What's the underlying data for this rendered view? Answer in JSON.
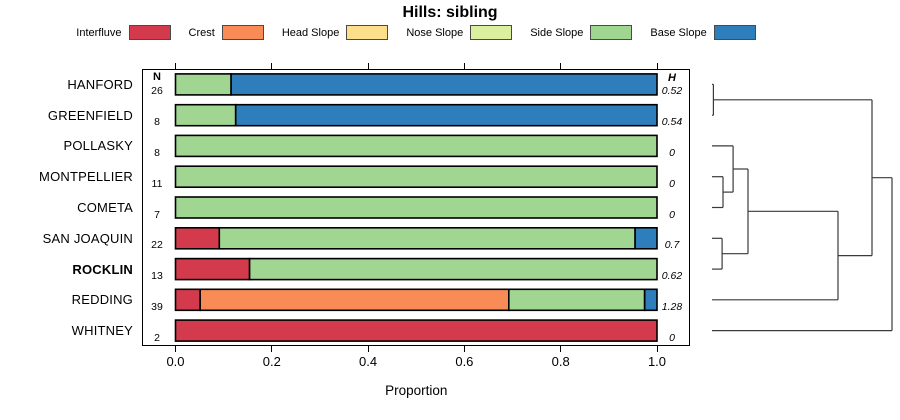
{
  "title": "Hills: sibling",
  "colors": {
    "interfluve": "#D33B4D",
    "crest": "#F98B57",
    "head_slope": "#FBDF8B",
    "nose_slope": "#DCEF9E",
    "side_slope": "#A0D592",
    "base_slope": "#2E7EBC",
    "bar_border": "#000000",
    "dendro_line": "#3a3a3a"
  },
  "legend": {
    "items": [
      {
        "label": "Interfluve",
        "key": "interfluve"
      },
      {
        "label": "Crest",
        "key": "crest"
      },
      {
        "label": "Head Slope",
        "key": "head_slope"
      },
      {
        "label": "Nose Slope",
        "key": "nose_slope"
      },
      {
        "label": "Side Slope",
        "key": "side_slope"
      },
      {
        "label": "Base Slope",
        "key": "base_slope"
      }
    ]
  },
  "columns": {
    "n_header": "N",
    "h_header": "H"
  },
  "axis": {
    "xlabel": "Proportion",
    "ticks": [
      "0.0",
      "0.2",
      "0.4",
      "0.6",
      "0.8",
      "1.0"
    ],
    "tick_values": [
      0,
      0.2,
      0.4,
      0.6,
      0.8,
      1.0
    ]
  },
  "rows": [
    {
      "name": "HANFORD",
      "n": "26",
      "h": "0.52",
      "bold": false,
      "segments": [
        {
          "key": "side_slope",
          "frac": 0.1154
        },
        {
          "key": "base_slope",
          "frac": 0.8846
        }
      ]
    },
    {
      "name": "GREENFIELD",
      "n": "8",
      "h": "0.54",
      "bold": false,
      "segments": [
        {
          "key": "side_slope",
          "frac": 0.125
        },
        {
          "key": "base_slope",
          "frac": 0.875
        }
      ]
    },
    {
      "name": "POLLASKY",
      "n": "8",
      "h": "0",
      "bold": false,
      "segments": [
        {
          "key": "side_slope",
          "frac": 1
        }
      ]
    },
    {
      "name": "MONTPELLIER",
      "n": "11",
      "h": "0",
      "bold": false,
      "segments": [
        {
          "key": "side_slope",
          "frac": 1
        }
      ]
    },
    {
      "name": "COMETA",
      "n": "7",
      "h": "0",
      "bold": false,
      "segments": [
        {
          "key": "side_slope",
          "frac": 1
        }
      ]
    },
    {
      "name": "SAN JOAQUIN",
      "n": "22",
      "h": "0.7",
      "bold": false,
      "segments": [
        {
          "key": "interfluve",
          "frac": 0.0909
        },
        {
          "key": "side_slope",
          "frac": 0.8636
        },
        {
          "key": "base_slope",
          "frac": 0.0455
        }
      ]
    },
    {
      "name": "ROCKLIN",
      "n": "13",
      "h": "0.62",
      "bold": true,
      "segments": [
        {
          "key": "interfluve",
          "frac": 0.1538
        },
        {
          "key": "side_slope",
          "frac": 0.8462
        }
      ]
    },
    {
      "name": "REDDING",
      "n": "39",
      "h": "1.28",
      "bold": false,
      "segments": [
        {
          "key": "interfluve",
          "frac": 0.0513
        },
        {
          "key": "crest",
          "frac": 0.641
        },
        {
          "key": "side_slope",
          "frac": 0.2821
        },
        {
          "key": "base_slope",
          "frac": 0.0256
        }
      ]
    },
    {
      "name": "WHITNEY",
      "n": "2",
      "h": "0",
      "bold": false,
      "segments": [
        {
          "key": "interfluve",
          "frac": 1
        }
      ]
    }
  ],
  "dendrogram": {
    "h": 1.0,
    "children": [
      {
        "h": 0.889,
        "children": [
          {
            "h": 0.008,
            "children": [
              {
                "leaf": 0
              },
              {
                "leaf": 1
              }
            ]
          },
          {
            "h": 0.7,
            "children": [
              {
                "h": 0.2,
                "children": [
                  {
                    "h": 0.117,
                    "children": [
                      {
                        "leaf": 2
                      },
                      {
                        "h": 0.061,
                        "children": [
                          {
                            "leaf": 3
                          },
                          {
                            "leaf": 4
                          }
                        ]
                      }
                    ]
                  },
                  {
                    "h": 0.056,
                    "children": [
                      {
                        "leaf": 5
                      },
                      {
                        "leaf": 6
                      }
                    ]
                  }
                ]
              },
              {
                "leaf": 7
              }
            ]
          }
        ]
      },
      {
        "leaf": 8
      }
    ]
  },
  "chart_data": {
    "type": "bar",
    "subtype": "horizontal_stacked_proportion_with_dendrogram",
    "title": "Hills: sibling",
    "xlabel": "Proportion",
    "xlim": [
      0,
      1
    ],
    "x_ticks": [
      0,
      0.2,
      0.4,
      0.6,
      0.8,
      1.0
    ],
    "categories": [
      "HANFORD",
      "GREENFIELD",
      "POLLASKY",
      "MONTPELLIER",
      "COMETA",
      "SAN JOAQUIN",
      "ROCKLIN",
      "REDDING",
      "WHITNEY"
    ],
    "sample_sizes_N": [
      26,
      8,
      8,
      11,
      7,
      22,
      13,
      39,
      2
    ],
    "diversity_H": [
      0.52,
      0.54,
      0,
      0,
      0,
      0.7,
      0.62,
      1.28,
      0
    ],
    "series": [
      {
        "name": "Interfluve",
        "values": [
          0,
          0,
          0,
          0,
          0,
          0.091,
          0.154,
          0.051,
          1.0
        ]
      },
      {
        "name": "Crest",
        "values": [
          0,
          0,
          0,
          0,
          0,
          0,
          0,
          0.641,
          0
        ]
      },
      {
        "name": "Head Slope",
        "values": [
          0,
          0,
          0,
          0,
          0,
          0,
          0,
          0,
          0
        ]
      },
      {
        "name": "Nose Slope",
        "values": [
          0,
          0,
          0,
          0,
          0,
          0,
          0,
          0,
          0
        ]
      },
      {
        "name": "Side Slope",
        "values": [
          0.115,
          0.125,
          1.0,
          1.0,
          1.0,
          0.864,
          0.846,
          0.282,
          0
        ]
      },
      {
        "name": "Base Slope",
        "values": [
          0.885,
          0.875,
          0,
          0,
          0,
          0.045,
          0,
          0.026,
          0
        ]
      }
    ],
    "legend_position": "top",
    "grid": false,
    "dendrogram_side": "right"
  }
}
